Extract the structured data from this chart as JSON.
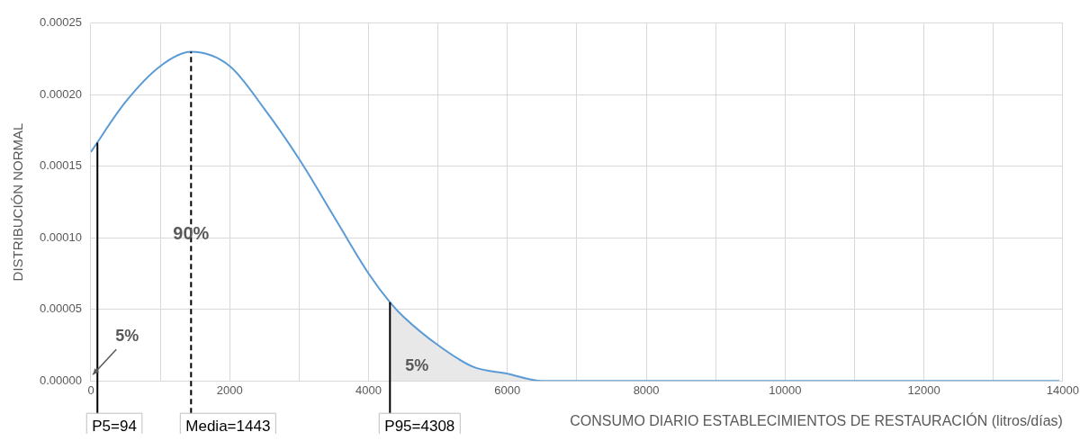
{
  "chart_data": {
    "type": "line",
    "xlabel": "CONSUMO DIARIO ESTABLECIMIENTOS DE RESTAURACIÓN (litros/días)",
    "ylabel": "DISTRIBUCIÓN NORMAL",
    "series": [
      {
        "type": "line",
        "color": "#5b9bd5",
        "x": [
          0,
          500,
          1000,
          1443,
          2000,
          2500,
          3000,
          3500,
          4000,
          4308,
          4500,
          5000,
          5500,
          6000,
          6500,
          7000,
          8000,
          10000,
          12000,
          13950
        ],
        "values": [
          0.00016,
          0.000195,
          0.00022,
          0.00023,
          0.00022,
          0.00019,
          0.000155,
          0.000115,
          7.5e-05,
          5.5e-05,
          4.5e-05,
          2.5e-05,
          1e-05,
          5e-06,
          0,
          0,
          0,
          0,
          0,
          0
        ]
      },
      {
        "type": "area",
        "color": "#e8e8e8",
        "x": [
          4308,
          4500,
          5000,
          5500,
          6000,
          6500,
          7000,
          8000,
          10000,
          12000,
          13950
        ],
        "values": [
          5.5e-05,
          4.5e-05,
          2.5e-05,
          1e-05,
          5e-06,
          0,
          0,
          0,
          0,
          0,
          0
        ]
      }
    ],
    "xlim": [
      0,
      14000
    ],
    "xticks": [
      0,
      {
        "value": 1000,
        "label": null
      },
      2000,
      {
        "value": 3000,
        "label": null
      },
      4000,
      {
        "value": 5000,
        "label": null
      },
      6000,
      {
        "value": 7000,
        "label": null
      },
      8000,
      {
        "value": 9000,
        "label": null
      },
      10000,
      {
        "value": 11000,
        "label": null
      },
      12000,
      {
        "value": 13000,
        "label": null
      },
      14000
    ],
    "ylim": [
      0,
      0.00025
    ],
    "yticks": [
      {
        "value": 0,
        "label": "0.00000"
      },
      {
        "value": 5e-05,
        "label": "0.00005"
      },
      {
        "value": 0.0001,
        "label": "0.00010"
      },
      {
        "value": 0.00015,
        "label": "0.00015"
      },
      {
        "value": 0.0002,
        "label": "0.00020"
      },
      {
        "value": 0.00025,
        "label": "0.00025"
      }
    ],
    "ref_lines": [
      {
        "axis": "x",
        "value": 94,
        "label": "P5=94",
        "color": "#000000",
        "line_style": "solid"
      },
      {
        "axis": "x",
        "value": 1443,
        "label": "Media=1443",
        "color": "#000000",
        "line_style": "dashed"
      },
      {
        "axis": "x",
        "value": 4308,
        "label": "P95=4308",
        "color": "#000000",
        "line_style": "solid"
      }
    ],
    "annotations": [
      "90%",
      "5%",
      "5%"
    ],
    "grid": true,
    "legend": false,
    "marker": "none"
  }
}
